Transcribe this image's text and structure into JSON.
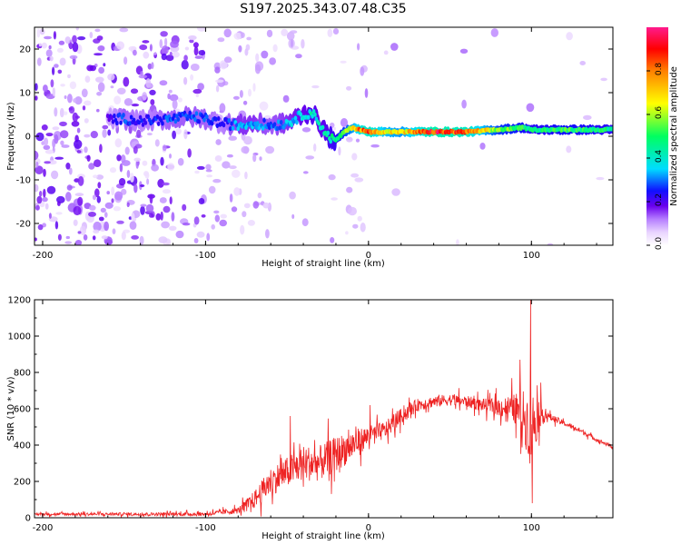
{
  "title": "S197.2025.343.07.48.C35",
  "chart_data": [
    {
      "type": "heatmap",
      "name": "spectrogram",
      "xlabel": "Height of straight line (km)",
      "ylabel": "Frequency (Hz)",
      "xlim": [
        -205,
        150
      ],
      "ylim": [
        -25,
        25
      ],
      "xticks": [
        -200,
        -100,
        0,
        100
      ],
      "yticks": [
        -20,
        -10,
        0,
        10,
        20
      ],
      "colorbar": {
        "label": "Normalized spectral amplitude",
        "range": [
          0,
          1
        ],
        "ticks": [
          "0.0",
          "0.2",
          "0.4",
          "0.6",
          "0.8"
        ],
        "colors": [
          "#ffffff",
          "#e9d4ff",
          "#b57dff",
          "#6a00ee",
          "#1010ff",
          "#00ddff",
          "#00ff60",
          "#ffff00",
          "#ff8000",
          "#ff0000",
          "#ff1a8c"
        ]
      },
      "ridge": {
        "description_values": "dominant frequency (Hz) vs height (km)",
        "x": [
          -160,
          -150,
          -140,
          -120,
          -110,
          -100,
          -90,
          -80,
          -70,
          -60,
          -50,
          -40,
          -35,
          -30,
          -25,
          -20,
          -15,
          -10,
          -5,
          0,
          10,
          20,
          40,
          60,
          80,
          95,
          100,
          120,
          150
        ],
        "y": [
          4,
          4,
          3.5,
          4,
          4.5,
          4,
          3,
          2.5,
          3,
          2.5,
          3,
          5,
          5.5,
          3,
          0,
          -1,
          1,
          2,
          1.5,
          1,
          1,
          1,
          1,
          1,
          1.5,
          2,
          1.5,
          1.5,
          1.5
        ],
        "peak_amplitude": [
          0.2,
          0.3,
          0.25,
          0.3,
          0.3,
          0.3,
          0.25,
          0.35,
          0.35,
          0.3,
          0.35,
          0.4,
          0.45,
          0.4,
          0.45,
          0.5,
          0.6,
          0.7,
          0.85,
          0.9,
          0.75,
          0.7,
          0.95,
          0.9,
          0.6,
          0.55,
          0.5,
          0.55,
          0.5
        ]
      }
    },
    {
      "type": "line",
      "name": "snr",
      "xlabel": "Height of straight line (km)",
      "ylabel": "SNR (10 * v/v)",
      "xlim": [
        -205,
        150
      ],
      "ylim": [
        0,
        1200
      ],
      "xticks": [
        -200,
        -100,
        0,
        100
      ],
      "yticks": [
        0,
        200,
        400,
        600,
        800,
        1000,
        1200
      ],
      "color": "#ee2222",
      "envelope": {
        "x": [
          -205,
          -150,
          -100,
          -80,
          -70,
          -60,
          -50,
          -40,
          -30,
          -20,
          -10,
          0,
          10,
          20,
          30,
          40,
          50,
          60,
          70,
          80,
          90,
          95,
          100,
          105,
          110,
          120,
          130,
          140,
          150
        ],
        "mean": [
          20,
          20,
          20,
          40,
          100,
          200,
          250,
          300,
          300,
          350,
          400,
          450,
          480,
          560,
          620,
          640,
          650,
          640,
          620,
          610,
          600,
          560,
          500,
          580,
          560,
          520,
          480,
          430,
          390
        ],
        "spread": [
          10,
          12,
          15,
          25,
          70,
          110,
          120,
          140,
          140,
          140,
          120,
          80,
          70,
          60,
          50,
          45,
          45,
          45,
          50,
          70,
          120,
          200,
          300,
          120,
          30,
          20,
          20,
          15,
          15
        ]
      },
      "spikes": [
        {
          "x": 99.5,
          "y": 1200
        },
        {
          "x": 100.5,
          "y": 80
        },
        {
          "x": 1,
          "y": 620
        },
        {
          "x": -48,
          "y": 560
        },
        {
          "x": 93,
          "y": 870
        }
      ]
    }
  ]
}
